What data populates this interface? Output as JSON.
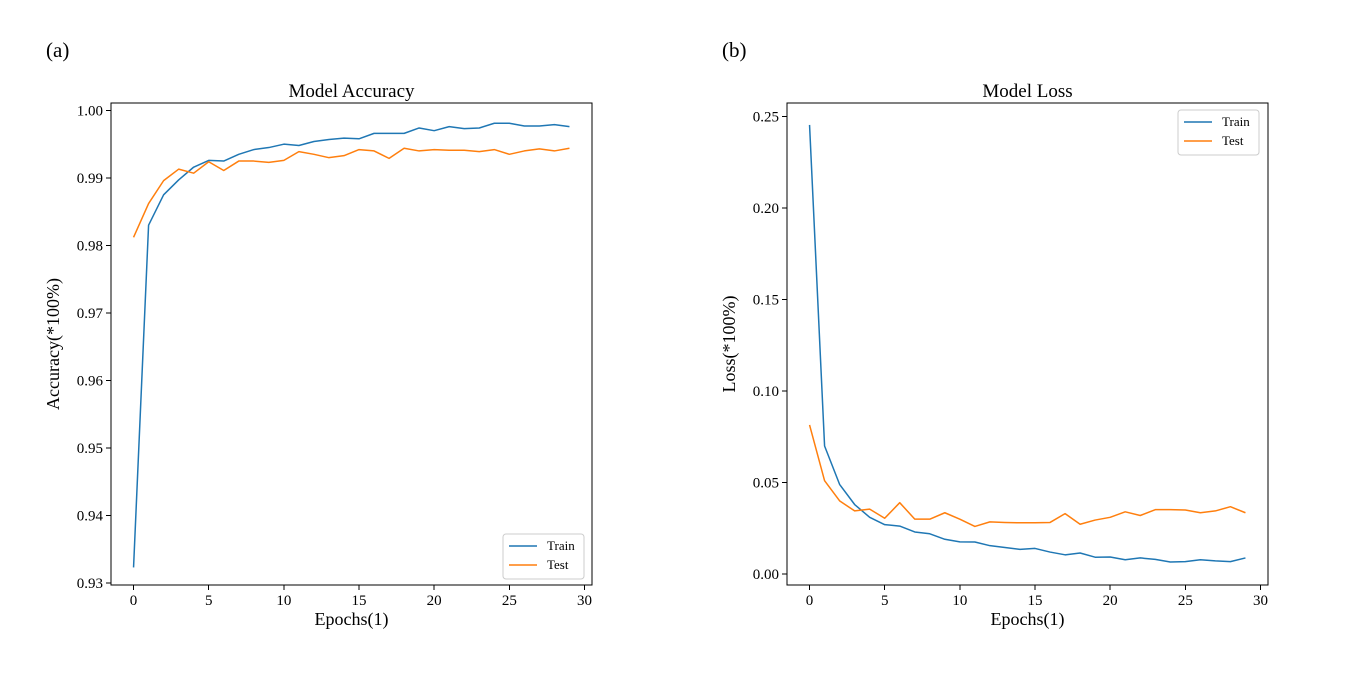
{
  "chart_data": [
    {
      "panel_label": "(a)",
      "type": "line",
      "title": "Model Accuracy",
      "xlabel": "Epochs(1)",
      "ylabel": "Accuracy(*100%)",
      "xlim": [
        -1.5,
        30.5
      ],
      "ylim": [
        0.9297,
        1.0011
      ],
      "xticks": [
        0,
        5,
        10,
        15,
        20,
        25,
        30
      ],
      "yticks": [
        0.93,
        0.94,
        0.95,
        0.96,
        0.97,
        0.98,
        0.99,
        1.0
      ],
      "ytick_labels": [
        "0.93",
        "0.94",
        "0.95",
        "0.96",
        "0.97",
        "0.98",
        "0.99",
        "1.00"
      ],
      "grid": false,
      "legend": "lower-right",
      "x": [
        0,
        1,
        2,
        3,
        4,
        5,
        6,
        7,
        8,
        9,
        10,
        11,
        12,
        13,
        14,
        15,
        16,
        17,
        18,
        19,
        20,
        21,
        22,
        23,
        24,
        25,
        26,
        27,
        28,
        29
      ],
      "series": [
        {
          "name": "Train",
          "color": "#1f77b4",
          "values": [
            0.9323,
            0.983,
            0.9875,
            0.9897,
            0.9916,
            0.9926,
            0.9925,
            0.9935,
            0.9942,
            0.9945,
            0.995,
            0.9948,
            0.9954,
            0.9957,
            0.9959,
            0.9958,
            0.9966,
            0.9966,
            0.9966,
            0.9974,
            0.997,
            0.9976,
            0.9973,
            0.9974,
            0.9981,
            0.9981,
            0.9977,
            0.9977,
            0.9979,
            0.9976
          ]
        },
        {
          "name": "Test",
          "color": "#ff7f0e",
          "values": [
            0.9812,
            0.9862,
            0.9896,
            0.9913,
            0.9907,
            0.9924,
            0.9911,
            0.9925,
            0.9925,
            0.9923,
            0.9926,
            0.9939,
            0.9935,
            0.993,
            0.9933,
            0.9942,
            0.994,
            0.9929,
            0.9944,
            0.994,
            0.9942,
            0.9941,
            0.9941,
            0.9939,
            0.9942,
            0.9935,
            0.994,
            0.9943,
            0.994,
            0.9944
          ]
        }
      ]
    },
    {
      "panel_label": "(b)",
      "type": "line",
      "title": "Model Loss",
      "xlabel": "Epochs(1)",
      "ylabel": "Loss(*100%)",
      "xlim": [
        -1.5,
        30.5
      ],
      "ylim": [
        -0.006,
        0.2575
      ],
      "xticks": [
        0,
        5,
        10,
        15,
        20,
        25,
        30
      ],
      "yticks": [
        0.0,
        0.05,
        0.1,
        0.15,
        0.2,
        0.25
      ],
      "ytick_labels": [
        "0.00",
        "0.05",
        "0.10",
        "0.15",
        "0.20",
        "0.25"
      ],
      "grid": false,
      "legend": "upper-right",
      "x": [
        0,
        1,
        2,
        3,
        4,
        5,
        6,
        7,
        8,
        9,
        10,
        11,
        12,
        13,
        14,
        15,
        16,
        17,
        18,
        19,
        20,
        21,
        22,
        23,
        24,
        25,
        26,
        27,
        28,
        29
      ],
      "series": [
        {
          "name": "Train",
          "color": "#1f77b4",
          "values": [
            0.2455,
            0.07,
            0.049,
            0.038,
            0.031,
            0.027,
            0.0262,
            0.023,
            0.022,
            0.019,
            0.0176,
            0.0175,
            0.0155,
            0.0145,
            0.0135,
            0.014,
            0.012,
            0.0105,
            0.0115,
            0.0092,
            0.0093,
            0.0078,
            0.0088,
            0.008,
            0.0066,
            0.0068,
            0.0078,
            0.0072,
            0.0068,
            0.0088
          ]
        },
        {
          "name": "Test",
          "color": "#ff7f0e",
          "values": [
            0.0815,
            0.051,
            0.04,
            0.0345,
            0.0355,
            0.0305,
            0.039,
            0.03,
            0.03,
            0.0335,
            0.03,
            0.026,
            0.0285,
            0.0282,
            0.028,
            0.028,
            0.0282,
            0.033,
            0.0272,
            0.0295,
            0.031,
            0.034,
            0.032,
            0.0352,
            0.0352,
            0.035,
            0.0335,
            0.0345,
            0.0368,
            0.0335
          ]
        }
      ]
    }
  ]
}
